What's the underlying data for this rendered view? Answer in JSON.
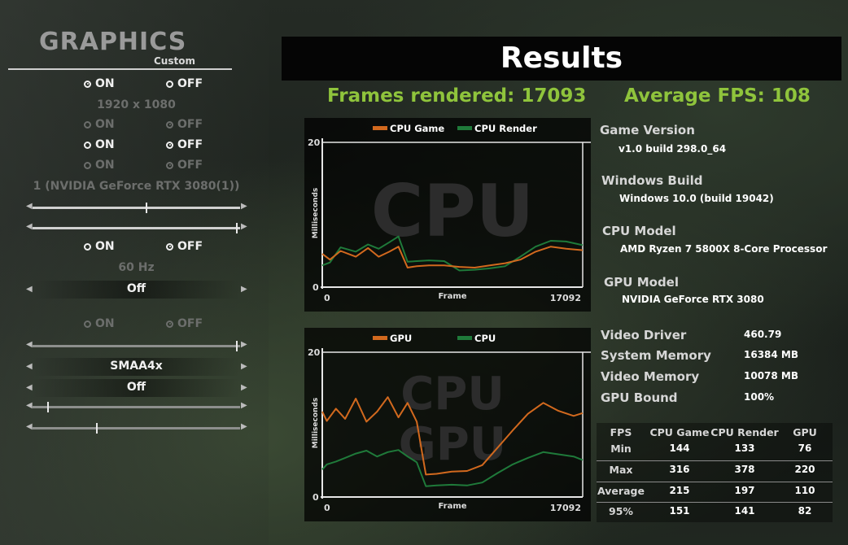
{
  "graphics": {
    "title": "GRAPHICS",
    "preset": "Custom",
    "on_label": "ON",
    "off_label": "OFF",
    "resolution": "1920 x 1080",
    "gpu_select": "1 (NVIDIA GeForce RTX 3080(1))",
    "refresh_rate": "60 Hz",
    "selector1": "Off",
    "antialiasing": "SMAA4x",
    "selector2": "Off",
    "radio_rows": [
      {
        "selected": "on",
        "enabled": true
      },
      {
        "selected": "off",
        "enabled": false
      },
      {
        "selected": "off",
        "enabled": true
      },
      {
        "selected": "off",
        "enabled": false
      },
      {
        "selected": "off",
        "enabled": true
      },
      {
        "selected": "off",
        "enabled": false
      }
    ],
    "sliders": [
      {
        "level": 0.55,
        "enabled": true
      },
      {
        "level": 0.99,
        "enabled": true
      },
      {
        "level": 0.99,
        "enabled": false
      },
      {
        "level": 0.07,
        "enabled": false
      },
      {
        "level": 0.31,
        "enabled": false
      }
    ]
  },
  "results": {
    "title": "Results",
    "frames_label": "Frames rendered:",
    "frames_value": "17093",
    "avg_fps_label": "Average FPS:",
    "avg_fps_value": "108"
  },
  "colors": {
    "orange": "#d2691e",
    "green": "#1f7a3a",
    "accent": "#8fc43c"
  },
  "info": {
    "game_version_label": "Game Version",
    "game_version": "v1.0 build 298.0_64",
    "windows_build_label": "Windows Build",
    "windows_build": "Windows 10.0 (build 19042)",
    "cpu_model_label": "CPU Model",
    "cpu_model": "AMD Ryzen 7 5800X 8-Core Processor",
    "gpu_model_label": "GPU Model",
    "gpu_model": "NVIDIA GeForce RTX 3080",
    "video_driver_label": "Video Driver",
    "video_driver": "460.79",
    "system_memory_label": "System Memory",
    "system_memory": "16384 MB",
    "video_memory_label": "Video Memory",
    "video_memory": "10078 MB",
    "gpu_bound_label": "GPU Bound",
    "gpu_bound": "100%"
  },
  "stats_table": {
    "headers": [
      "FPS",
      "CPU Game",
      "CPU Render",
      "GPU"
    ],
    "rows": [
      [
        "Min",
        "144",
        "133",
        "76"
      ],
      [
        "Max",
        "316",
        "378",
        "220"
      ],
      [
        "Average",
        "215",
        "197",
        "110"
      ],
      [
        "95%",
        "151",
        "141",
        "82"
      ]
    ]
  },
  "chart_data": [
    {
      "type": "line",
      "watermark": "CPU",
      "xlabel": "Frame",
      "ylabel": "Milliseconds",
      "x_ticks": [
        "0",
        "17092"
      ],
      "y_ticks": [
        "0",
        "20"
      ],
      "xlim": [
        0,
        17092
      ],
      "ylim": [
        0,
        20
      ],
      "series": [
        {
          "name": "CPU Game",
          "color": "#d2691e",
          "x": [
            0,
            500,
            1200,
            2200,
            3000,
            3700,
            4400,
            5000,
            5600,
            6200,
            7000,
            8000,
            9000,
            10000,
            11000,
            12000,
            13000,
            14000,
            15000,
            16000,
            17092
          ],
          "y": [
            4.6,
            3.8,
            5.0,
            4.2,
            5.4,
            4.2,
            4.9,
            5.6,
            2.7,
            2.9,
            3.0,
            3.0,
            2.8,
            2.7,
            3.0,
            3.3,
            3.8,
            4.9,
            5.6,
            5.3,
            5.1
          ]
        },
        {
          "name": "CPU Render",
          "color": "#1f7a3a",
          "x": [
            0,
            500,
            1200,
            2200,
            3000,
            3700,
            4400,
            5000,
            5600,
            6200,
            7000,
            8000,
            9000,
            10000,
            11000,
            12000,
            13000,
            14000,
            15000,
            16000,
            17092
          ],
          "y": [
            3.0,
            3.4,
            5.5,
            4.9,
            5.9,
            5.3,
            6.2,
            7.0,
            3.5,
            3.6,
            3.7,
            3.6,
            2.3,
            2.4,
            2.6,
            2.9,
            4.2,
            5.6,
            6.4,
            6.3,
            5.8
          ]
        }
      ]
    },
    {
      "type": "line",
      "watermark": [
        "CPU",
        "GPU"
      ],
      "xlabel": "Frame",
      "ylabel": "Milliseconds",
      "x_ticks": [
        "0",
        "17092"
      ],
      "y_ticks": [
        "0",
        "20"
      ],
      "xlim": [
        0,
        17092
      ],
      "ylim": [
        0,
        20
      ],
      "series": [
        {
          "name": "GPU",
          "color": "#d2691e",
          "x": [
            0,
            300,
            900,
            1500,
            2200,
            2900,
            3600,
            4300,
            5000,
            5600,
            6200,
            6800,
            7500,
            8500,
            9500,
            10500,
            11500,
            12500,
            13500,
            14500,
            15500,
            16500,
            17092
          ],
          "y": [
            11.8,
            10.5,
            12.2,
            10.8,
            13.6,
            10.4,
            11.8,
            13.8,
            11.0,
            13.0,
            10.4,
            3.1,
            3.2,
            3.5,
            3.6,
            4.4,
            6.8,
            9.2,
            11.5,
            13.0,
            11.9,
            11.2,
            11.6
          ]
        },
        {
          "name": "CPU",
          "color": "#1f7a3a",
          "x": [
            0,
            300,
            900,
            1500,
            2200,
            2900,
            3600,
            4300,
            5000,
            5600,
            6200,
            6800,
            7500,
            8500,
            9500,
            10500,
            11500,
            12500,
            13500,
            14500,
            15500,
            16500,
            17092
          ],
          "y": [
            3.8,
            4.5,
            4.9,
            5.4,
            6.0,
            6.4,
            5.6,
            6.2,
            6.5,
            5.6,
            4.8,
            1.5,
            1.6,
            1.7,
            1.6,
            2.0,
            3.3,
            4.5,
            5.4,
            6.2,
            5.9,
            5.6,
            5.1
          ]
        }
      ]
    }
  ]
}
